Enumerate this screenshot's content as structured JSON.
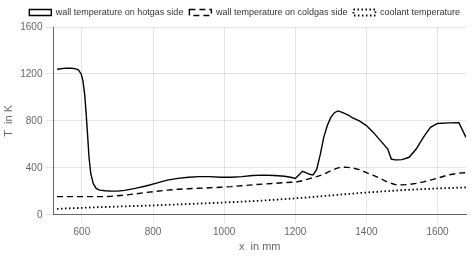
{
  "chart_data": {
    "type": "line",
    "xlabel": "x  in mm",
    "ylabel": "T  in K",
    "xlim": [
      520,
      1680
    ],
    "ylim": [
      0,
      1600
    ],
    "xticks": [
      600,
      800,
      1000,
      1200,
      1400,
      1600
    ],
    "yticks": [
      0,
      400,
      800,
      1200,
      1600
    ],
    "grid": true,
    "legend": "upper right",
    "series": [
      {
        "name": "wall temperature on hotgas side",
        "color": "black",
        "line_style": "solid",
        "x": [
          530,
          555,
          570,
          580,
          590,
          598,
          603,
          608,
          612,
          616,
          620,
          625,
          632,
          640,
          650,
          665,
          680,
          700,
          720,
          750,
          780,
          810,
          840,
          870,
          900,
          930,
          960,
          990,
          1020,
          1050,
          1080,
          1110,
          1140,
          1170,
          1190,
          1200,
          1210,
          1220,
          1230,
          1240,
          1250,
          1260,
          1270,
          1280,
          1290,
          1300,
          1310,
          1320,
          1330,
          1340,
          1350,
          1360,
          1380,
          1400,
          1420,
          1440,
          1460,
          1470,
          1480,
          1490,
          1500,
          1520,
          1540,
          1560,
          1580,
          1600,
          1630,
          1660,
          1680
        ],
        "values": [
          1240,
          1250,
          1248,
          1245,
          1235,
          1200,
          1140,
          1020,
          860,
          680,
          490,
          350,
          265,
          225,
          210,
          205,
          203,
          202,
          208,
          225,
          245,
          270,
          295,
          310,
          320,
          325,
          325,
          320,
          320,
          325,
          335,
          338,
          335,
          328,
          318,
          310,
          340,
          370,
          360,
          345,
          340,
          385,
          510,
          660,
          760,
          830,
          870,
          885,
          875,
          862,
          848,
          828,
          800,
          760,
          700,
          630,
          560,
          475,
          468,
          468,
          470,
          490,
          560,
          660,
          745,
          778,
          783,
          785,
          660
        ]
      },
      {
        "name": "wall temperature on coldgas side",
        "color": "black",
        "line_style": "dashed",
        "x": [
          530,
          555,
          570,
          580,
          590,
          598,
          603,
          608,
          612,
          616,
          620,
          625,
          632,
          640,
          650,
          665,
          680,
          700,
          720,
          750,
          780,
          810,
          840,
          870,
          900,
          930,
          960,
          990,
          1020,
          1050,
          1080,
          1110,
          1140,
          1170,
          1190,
          1200,
          1220,
          1240,
          1260,
          1280,
          1300,
          1320,
          1340,
          1360,
          1380,
          1400,
          1420,
          1440,
          1460,
          1480,
          1500,
          1520,
          1540,
          1560,
          1580,
          1600,
          1630,
          1660,
          1680
        ],
        "values": [
          155,
          155,
          155,
          155,
          155,
          155,
          155,
          155,
          155,
          155,
          155,
          155,
          155,
          155,
          155,
          155,
          157,
          162,
          168,
          178,
          190,
          200,
          210,
          218,
          222,
          226,
          230,
          235,
          240,
          248,
          255,
          262,
          268,
          274,
          277,
          278,
          290,
          308,
          325,
          345,
          375,
          400,
          406,
          400,
          385,
          360,
          335,
          308,
          278,
          258,
          255,
          258,
          268,
          280,
          295,
          312,
          340,
          355,
          358
        ]
      },
      {
        "name": "coolant temperature",
        "color": "black",
        "line_style": "dotted",
        "x": [
          530,
          560,
          590,
          620,
          650,
          680,
          710,
          740,
          770,
          800,
          850,
          900,
          950,
          1000,
          1050,
          1100,
          1150,
          1200,
          1250,
          1300,
          1350,
          1400,
          1450,
          1500,
          1550,
          1600,
          1650,
          1680
        ],
        "values": [
          50,
          55,
          58,
          62,
          65,
          68,
          71,
          74,
          77,
          80,
          86,
          92,
          98,
          105,
          112,
          120,
          130,
          140,
          152,
          165,
          178,
          190,
          200,
          210,
          218,
          225,
          230,
          233
        ]
      }
    ]
  }
}
